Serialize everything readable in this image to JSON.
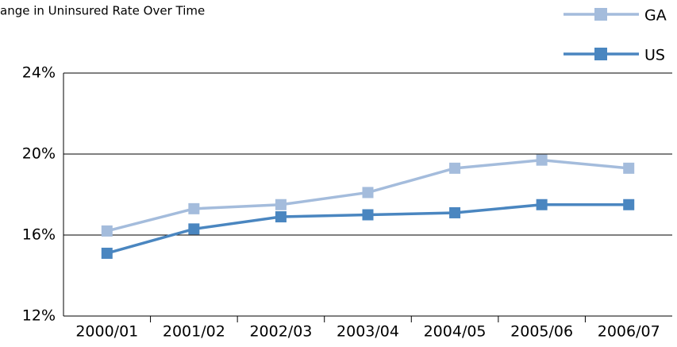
{
  "chart_data": {
    "type": "line",
    "title": "ange in Uninsured Rate Over Time",
    "categories": [
      "2000/01",
      "2001/02",
      "2002/03",
      "2003/04",
      "2004/05",
      "2005/06",
      "2006/07"
    ],
    "series": [
      {
        "name": "GA",
        "color": "#a4bcdc",
        "values": [
          16.2,
          17.3,
          17.5,
          18.1,
          19.3,
          19.7,
          19.3
        ]
      },
      {
        "name": "US",
        "color": "#4a86c0",
        "values": [
          15.1,
          16.3,
          16.9,
          17.0,
          17.1,
          17.5,
          17.5
        ]
      }
    ],
    "ylim": [
      12,
      24
    ],
    "yticks": [
      {
        "value": 12,
        "label": "12%"
      },
      {
        "value": 16,
        "label": "16%"
      },
      {
        "value": 20,
        "label": "20%"
      },
      {
        "value": 24,
        "label": "24%"
      }
    ],
    "grid": true,
    "legend": "top-right"
  }
}
